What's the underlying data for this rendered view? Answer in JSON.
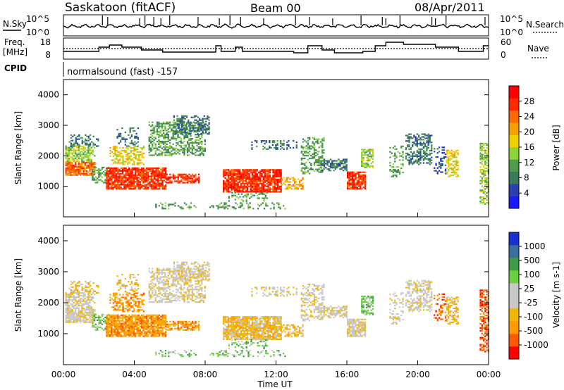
{
  "header": {
    "station": "Saskatoon (fitACF)",
    "beam": "Beam 00",
    "date": "08/Apr/2011"
  },
  "noise_panel": {
    "left_label": "N.Sky",
    "right_label": "N.Search",
    "tick_top_left": "10^5",
    "tick_bottom_left": "10^0",
    "tick_top_right": "10^5",
    "tick_bottom_right": "10^0"
  },
  "freq_panel": {
    "left_label_1": "Freq.",
    "left_label_2": "[MHz]",
    "right_label": "Nave",
    "left_ticks": [
      "18",
      "8"
    ],
    "right_ticks": [
      "60",
      "0"
    ]
  },
  "cpid": {
    "label": "CPID",
    "value": "normalsound (fast) -157"
  },
  "x_axis": {
    "label": "Time UT",
    "ticks": [
      "00:00",
      "04:00",
      "08:00",
      "12:00",
      "16:00",
      "20:00",
      "00:00"
    ]
  },
  "colors": {
    "power_scale": [
      "#1a1aff",
      "#2a3fb0",
      "#3a7a5a",
      "#4e9a4e",
      "#8fd33a",
      "#f0d000",
      "#f5a000",
      "#ff6a00",
      "#ff2a00",
      "#ff0000"
    ],
    "velocity_scale": [
      "#ff0000",
      "#ff5a00",
      "#ff9a00",
      "#f0b800",
      "#c8c8c8",
      "#c8c8c8",
      "#6ad040",
      "#3f9a4a",
      "#3a6fa0",
      "#1a30d0"
    ]
  },
  "chart_data": [
    {
      "type": "line",
      "title": "N.Sky / N.Search",
      "y_scale": "log",
      "ylim": [
        1,
        100000
      ],
      "x_units": "hours UT",
      "xlim": [
        0,
        24
      ],
      "series": []
    },
    {
      "type": "line",
      "title": "Freq. / Nave",
      "xlim": [
        0,
        24
      ],
      "ylim_left": [
        8,
        18
      ],
      "ylim_right": [
        0,
        60
      ],
      "series": []
    },
    {
      "type": "heatmap",
      "ylabel": "Slant Range [km]",
      "xlabel": "Time UT",
      "xlim": [
        0,
        24
      ],
      "ylim": [
        0,
        4500
      ],
      "y_ticks": [
        1000,
        2000,
        3000,
        4000
      ],
      "colorbar": {
        "label": "Power [dB]",
        "ticks": [
          "4",
          "8",
          "12",
          "16",
          "20",
          "24",
          "28"
        ],
        "range": [
          0,
          32
        ]
      }
    },
    {
      "type": "heatmap",
      "ylabel": "Slant Range [km]",
      "xlabel": "Time UT",
      "xlim": [
        0,
        24
      ],
      "ylim": [
        0,
        4500
      ],
      "y_ticks": [
        1000,
        2000,
        3000,
        4000
      ],
      "colorbar": {
        "label": "Velocity [m s-1]",
        "ticks": [
          "1000",
          "500",
          "100",
          "25",
          "-25",
          "-100",
          "-500",
          "-1000"
        ]
      }
    }
  ]
}
